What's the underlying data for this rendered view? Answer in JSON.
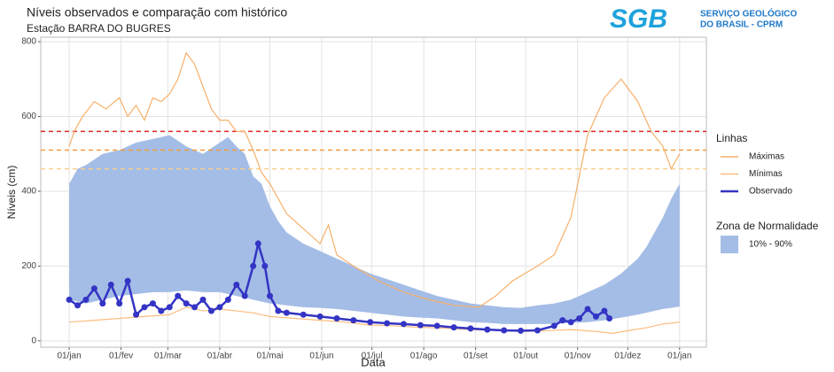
{
  "logo": {
    "mark": "SGB",
    "lines": [
      "SERVIÇO GEOLÓGICO",
      "DO BRASIL - CPRM"
    ]
  },
  "chart_data": {
    "type": "line",
    "title": "Níveis observados e comparação com histórico",
    "subtitle": "Estação BARRA DO BUGRES",
    "x_label": "Data",
    "y_label": "Níveis (cm)",
    "xlim": [
      -17,
      381
    ],
    "ylim": [
      -17,
      812
    ],
    "xticks": [
      {
        "value": 0,
        "label": "01/jan"
      },
      {
        "value": 31,
        "label": "01/fev"
      },
      {
        "value": 59,
        "label": "01/mar"
      },
      {
        "value": 90,
        "label": "01/abr"
      },
      {
        "value": 120,
        "label": "01/mai"
      },
      {
        "value": 151,
        "label": "01/jun"
      },
      {
        "value": 181,
        "label": "01/jul"
      },
      {
        "value": 212,
        "label": "01/ago"
      },
      {
        "value": 243,
        "label": "01/set"
      },
      {
        "value": 273,
        "label": "01/out"
      },
      {
        "value": 304,
        "label": "01/nov"
      },
      {
        "value": 334,
        "label": "01/dez"
      },
      {
        "value": 365,
        "label": "01/jan"
      }
    ],
    "yticks": [
      0,
      200,
      400,
      600,
      800
    ],
    "grid": true,
    "legend_title": "Linhas",
    "band_legend_title": "Zona de Normalidade",
    "hlines": [
      {
        "value": 560,
        "color": "#e0252a"
      },
      {
        "value": 510,
        "color": "#f39a3c"
      },
      {
        "value": 460,
        "color": "#fbd08c"
      }
    ],
    "band": {
      "name": "10% - 90%",
      "color": "#a4bde6",
      "x": [
        0,
        5,
        10,
        20,
        30,
        40,
        50,
        60,
        70,
        80,
        90,
        95,
        100,
        105,
        110,
        115,
        120,
        125,
        130,
        140,
        150,
        160,
        170,
        180,
        190,
        200,
        210,
        220,
        230,
        240,
        250,
        260,
        270,
        280,
        290,
        300,
        310,
        320,
        330,
        340,
        345,
        350,
        355,
        360,
        365
      ],
      "upper": [
        420,
        460,
        470,
        500,
        510,
        530,
        540,
        550,
        520,
        500,
        530,
        545,
        520,
        500,
        440,
        420,
        360,
        320,
        290,
        260,
        240,
        220,
        200,
        180,
        165,
        150,
        135,
        120,
        110,
        100,
        95,
        90,
        88,
        95,
        100,
        110,
        130,
        150,
        180,
        220,
        250,
        290,
        330,
        380,
        420
      ],
      "lower": [
        110,
        105,
        100,
        110,
        120,
        125,
        130,
        130,
        135,
        130,
        130,
        125,
        120,
        115,
        110,
        105,
        100,
        98,
        95,
        90,
        88,
        85,
        80,
        75,
        70,
        65,
        62,
        60,
        55,
        50,
        48,
        45,
        45,
        45,
        45,
        48,
        50,
        55,
        62,
        70,
        75,
        80,
        85,
        88,
        92
      ]
    },
    "series": [
      {
        "name": "Máximas",
        "color": "#f7b06a",
        "points": false,
        "x": [
          0,
          3,
          8,
          15,
          22,
          30,
          35,
          40,
          45,
          50,
          55,
          60,
          65,
          70,
          75,
          80,
          85,
          90,
          95,
          100,
          105,
          110,
          115,
          120,
          130,
          140,
          150,
          155,
          160,
          170,
          185,
          200,
          215,
          230,
          245,
          255,
          265,
          280,
          290,
          300,
          310,
          320,
          330,
          340,
          348,
          355,
          360,
          365
        ],
        "values": [
          520,
          560,
          600,
          640,
          620,
          650,
          600,
          630,
          590,
          650,
          640,
          660,
          700,
          770,
          740,
          680,
          620,
          590,
          590,
          560,
          560,
          510,
          450,
          420,
          340,
          300,
          260,
          310,
          230,
          200,
          160,
          130,
          110,
          95,
          90,
          120,
          160,
          200,
          230,
          330,
          550,
          650,
          700,
          640,
          560,
          520,
          460,
          500
        ]
      },
      {
        "name": "Mínimas",
        "color": "#fbbd7e",
        "points": false,
        "x": [
          0,
          15,
          30,
          45,
          60,
          70,
          80,
          90,
          100,
          110,
          120,
          135,
          150,
          165,
          180,
          195,
          210,
          225,
          240,
          255,
          270,
          285,
          300,
          315,
          325,
          335,
          345,
          355,
          365
        ],
        "values": [
          50,
          55,
          60,
          65,
          70,
          90,
          80,
          85,
          80,
          75,
          65,
          60,
          55,
          50,
          42,
          40,
          36,
          34,
          30,
          28,
          25,
          27,
          30,
          25,
          20,
          28,
          35,
          45,
          50
        ]
      },
      {
        "name": "Observado",
        "color": "#3434c4",
        "points": true,
        "x": [
          0,
          5,
          10,
          15,
          20,
          25,
          30,
          35,
          40,
          45,
          50,
          55,
          60,
          65,
          70,
          75,
          80,
          85,
          90,
          95,
          100,
          105,
          110,
          113,
          117,
          120,
          125,
          130,
          140,
          150,
          160,
          170,
          180,
          190,
          200,
          210,
          220,
          230,
          240,
          250,
          260,
          270,
          280,
          290,
          295,
          300,
          305,
          310,
          315,
          320,
          323
        ],
        "values": [
          110,
          95,
          110,
          140,
          100,
          150,
          100,
          160,
          70,
          90,
          100,
          80,
          90,
          120,
          100,
          90,
          110,
          80,
          90,
          110,
          150,
          120,
          200,
          260,
          200,
          120,
          80,
          75,
          70,
          65,
          60,
          55,
          50,
          47,
          45,
          42,
          40,
          36,
          33,
          30,
          28,
          27,
          28,
          40,
          55,
          50,
          60,
          85,
          65,
          80,
          60
        ]
      }
    ]
  }
}
